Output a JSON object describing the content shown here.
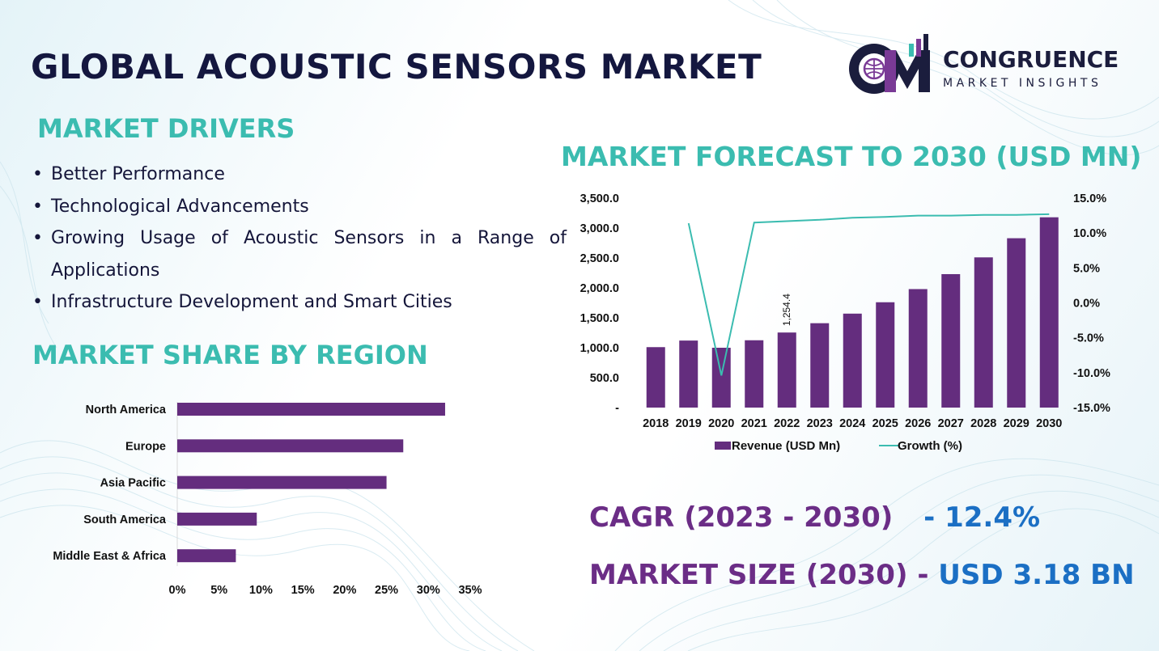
{
  "title": "GLOBAL ACOUSTIC SENSORS MARKET",
  "logo": {
    "name": "CONGRUENCE",
    "subtitle": "MARKET INSIGHTS"
  },
  "drivers": {
    "heading": "MARKET DRIVERS",
    "items": [
      "Better Performance",
      "Technological Advancements",
      "Growing Usage of Acoustic Sensors in a Range of Applications",
      "Infrastructure Development and Smart Cities"
    ]
  },
  "share": {
    "heading": "MARKET SHARE BY REGION"
  },
  "forecast": {
    "heading": "MARKET FORECAST TO 2030 (USD MN)"
  },
  "stats": {
    "cagr_label": "CAGR (2023 - 2030)",
    "cagr_value": "- 12.4%",
    "size_label": "MARKET SIZE (2030) -",
    "size_value": "USD 3.18 BN"
  },
  "colors": {
    "bar": "#642d7e",
    "line": "#3bbcb0",
    "teal": "#3bbcb0",
    "navy": "#14173f"
  },
  "chart_data": [
    {
      "type": "bar",
      "orientation": "horizontal",
      "title": "",
      "categories": [
        "North America",
        "Europe",
        "Asia Pacific",
        "South America",
        "Middle East & Africa"
      ],
      "values": [
        32,
        27,
        25,
        9.5,
        7
      ],
      "xlim": [
        0,
        35
      ],
      "xticks": [
        "0%",
        "5%",
        "10%",
        "15%",
        "20%",
        "25%",
        "30%",
        "35%"
      ],
      "grid": false
    },
    {
      "type": "bar",
      "title": "",
      "categories": [
        "2018",
        "2019",
        "2020",
        "2021",
        "2022",
        "2023",
        "2024",
        "2025",
        "2026",
        "2027",
        "2028",
        "2029",
        "2030"
      ],
      "series": [
        {
          "name": "Revenue (USD Mn)",
          "type": "bar",
          "axis": "left",
          "values": [
            1010,
            1120,
            1000,
            1125,
            1254.4,
            1410,
            1570,
            1760,
            1980,
            2230,
            2510,
            2830,
            3180
          ]
        },
        {
          "name": "Growth (%)",
          "type": "line",
          "axis": "right",
          "values": [
            null,
            11.4,
            -10.4,
            11.5,
            null,
            11.9,
            12.2,
            12.3,
            12.5,
            12.5,
            12.6,
            12.6,
            12.7
          ]
        }
      ],
      "data_labels": [
        {
          "category": "2022",
          "text": "1,254.4"
        }
      ],
      "ylim": [
        0,
        3500
      ],
      "yticks": [
        "-",
        "500.0",
        "1,000.0",
        "1,500.0",
        "2,000.0",
        "2,500.0",
        "3,000.0",
        "3,500.0"
      ],
      "y2lim": [
        -15,
        15
      ],
      "y2ticks": [
        "-15.0%",
        "-10.0%",
        "-5.0%",
        "0.0%",
        "5.0%",
        "10.0%",
        "15.0%"
      ],
      "legend": "bottom",
      "grid": false
    }
  ]
}
